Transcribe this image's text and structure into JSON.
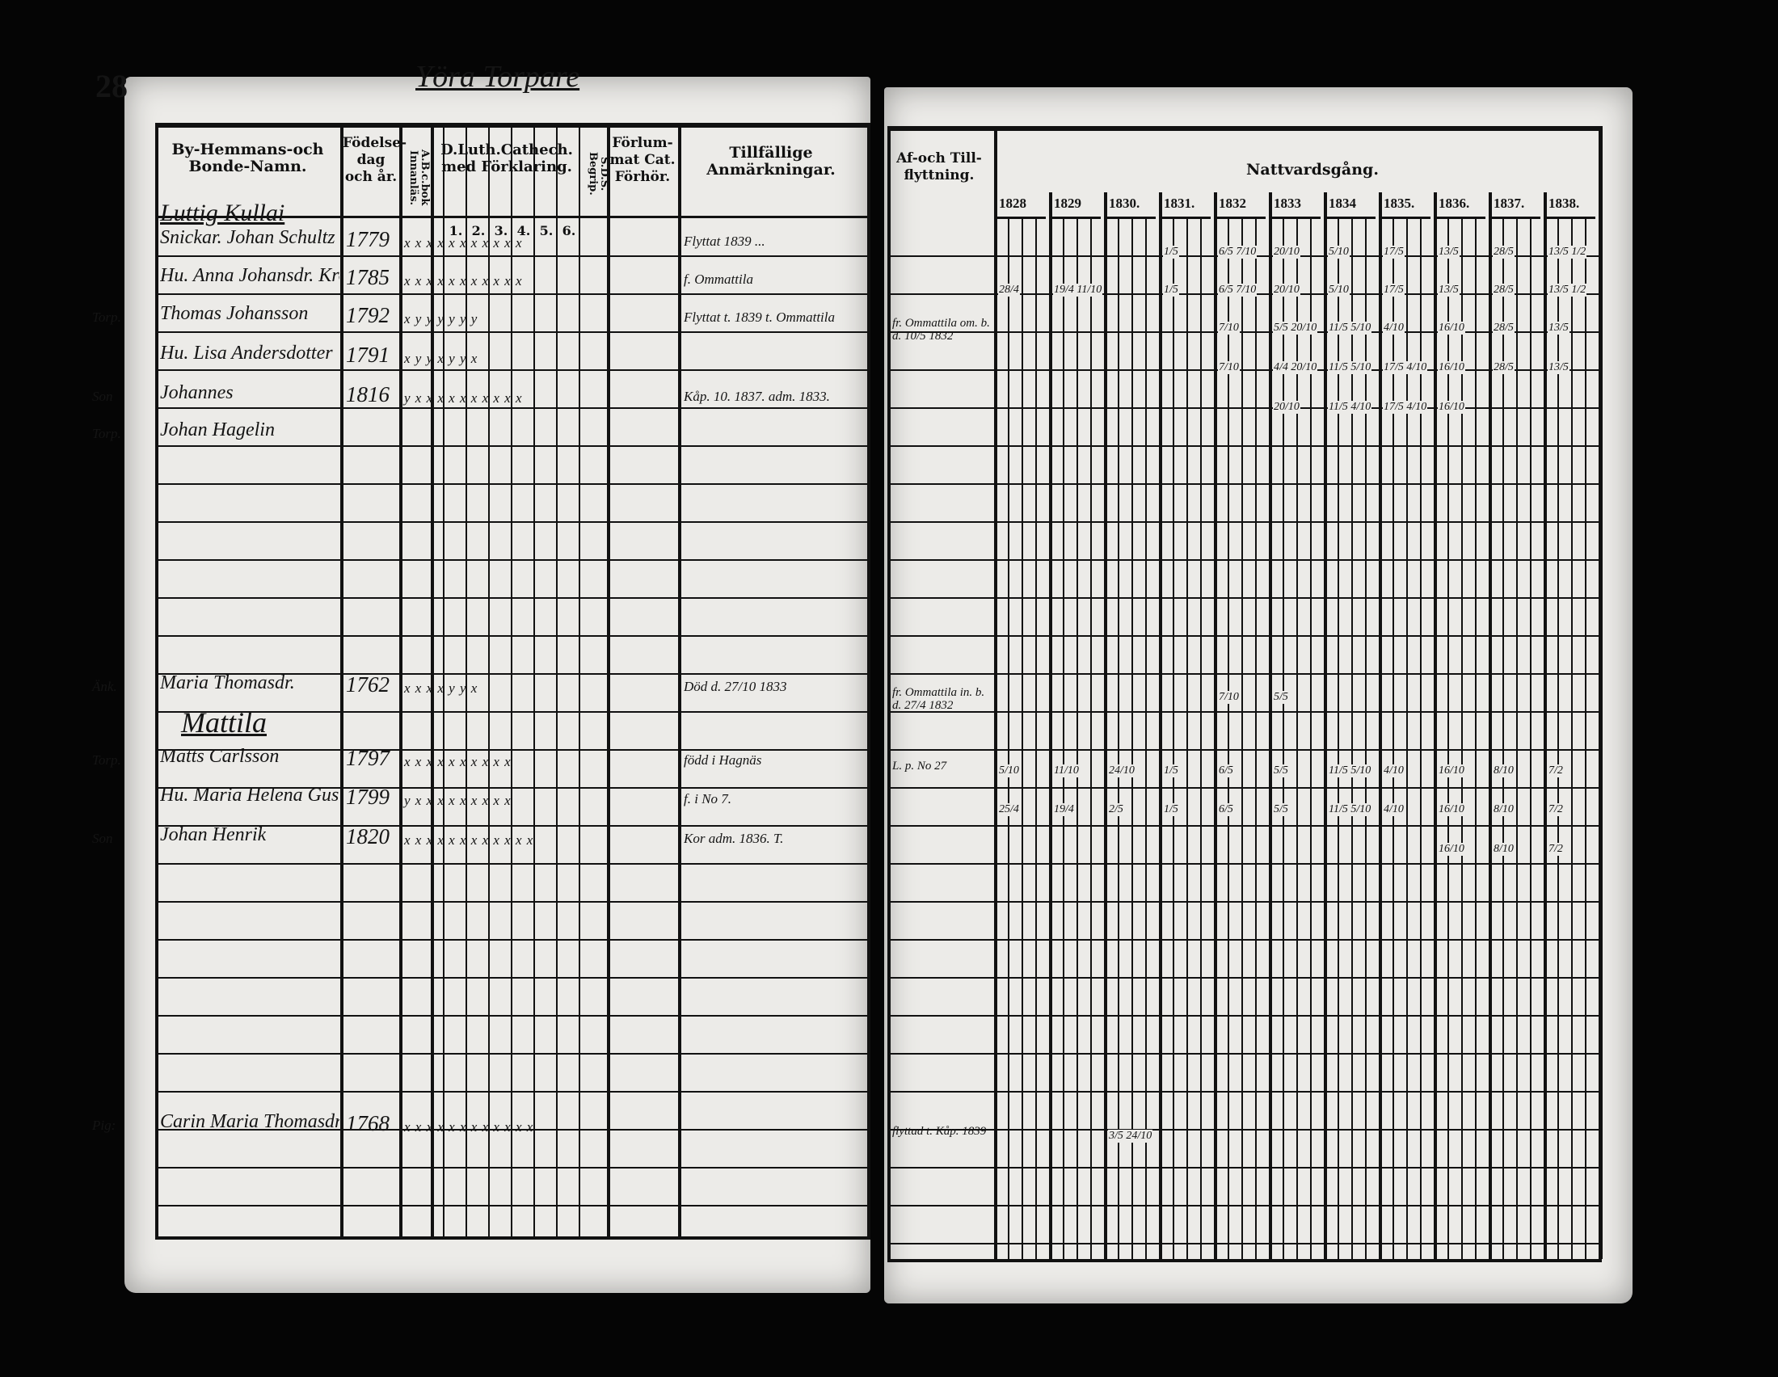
{
  "left_page": {
    "page_number": "28",
    "page_heading": "Yöra Torpare",
    "headers": {
      "names": "By-Hemmans-och Bonde-Namn.",
      "birth": "Födelse-dag och år.",
      "abc": "A.B.c.bok Innanläs.",
      "catechism": "D.Luth.Cathech. med Förklaring.",
      "catechism_cols": [
        "1.",
        "2.",
        "3.",
        "4.",
        "5.",
        "6."
      ],
      "sds": "S.D.S. Begrip.",
      "forlummat": "Förlum-mat Cat. Förhör.",
      "remarks": "Tillfällige Anmärkningar."
    },
    "groups": [
      {
        "title": "Luttig Kullai"
      },
      {
        "title": "Mattila"
      }
    ],
    "entries": [
      {
        "role": "",
        "name": "Snickar. Johan Schultz",
        "birth": "1779",
        "marks": "x x x x x x x x x x x",
        "remarks": "Flyttat 1839 ..."
      },
      {
        "role": "",
        "name": "Hu. Anna Johansdr. Kront",
        "birth": "1785",
        "marks": "x x x x x x x x x x x",
        "remarks": "f. Ommattila"
      },
      {
        "role": "Torp.",
        "name": "Thomas Johansson",
        "birth": "1792",
        "marks": "x  y  y  y  y  y  y",
        "remarks": "Flyttat t. 1839 t. Ommattila"
      },
      {
        "role": "",
        "name": "Hu. Lisa Andersdotter",
        "birth": "1791",
        "marks": "x  y  y  x  y  y  x",
        "remarks": ""
      },
      {
        "role": "Son",
        "name": "Johannes",
        "birth": "1816",
        "marks": "y x x x x x x x x x x",
        "remarks": "Kåp. 10. 1837.  adm. 1833."
      },
      {
        "role": "Torp.",
        "name": "Johan Hagelin",
        "birth": "",
        "marks": "",
        "remarks": ""
      },
      {
        "role": "Änk.",
        "name": "Maria Thomasdr.",
        "birth": "1762",
        "marks": "x  x  x  x  y  y  x",
        "remarks": "Död d. 27/10 1833"
      },
      {
        "role": "Torp.",
        "name": "Matts Carlsson",
        "birth": "1797",
        "marks": "x x x x x x x x x x",
        "remarks": "född i Hagnäs"
      },
      {
        "role": "",
        "name": "Hu. Maria Helena Gustafsdr.",
        "birth": "1799",
        "marks": "y x x x x x x x x x",
        "remarks": "f. i No 7."
      },
      {
        "role": "Son",
        "name": "Johan Henrik",
        "birth": "1820",
        "marks": "x x x x x x x x x x x x",
        "remarks": "Kor adm. 1836. T."
      },
      {
        "role": "Pig:",
        "name": "Carin Maria Thomasdr.",
        "birth": "1768",
        "marks": "x x x x x x x x x x x x",
        "remarks": ""
      }
    ]
  },
  "right_page": {
    "headers": {
      "moving": "Af-och Till-flyttning.",
      "communion": "Nattvardsgång.",
      "years": [
        "1828",
        "1829",
        "1830.",
        "1831.",
        "1832",
        "1833",
        "1834",
        "1835.",
        "1836.",
        "1837.",
        "1838."
      ]
    },
    "moving_notes": [
      "",
      "",
      "fr. Ommattila om. b. d. 10/5 1832",
      "",
      "",
      "",
      "fr. Ommattila in. b. d. 27/4 1832",
      "L. p. No 27",
      "",
      "",
      "flyttad t. Kåp. 1839"
    ],
    "communion": [
      {
        "1831": "1/5",
        "1832": "6/5 7/10",
        "1833": "20/10",
        "1834": "5/10",
        "1835": "17/5",
        "1836": "13/5",
        "1837": "28/5",
        "1838.": "13/5 1/2"
      },
      {
        "1828": "28/4",
        "1829": "19/4 11/10",
        "1831": "1/5",
        "1832": "6/5 7/10",
        "1833": "20/10",
        "1834": "5/10",
        "1835": "17/5",
        "1836": "13/5",
        "1837": "28/5",
        "1838.": "13/5 1/2"
      },
      {
        "1832": "7/10",
        "1833": "5/5 20/10",
        "1834": "11/5 5/10",
        "1835": "4/10",
        "1836": "16/10",
        "1837": "28/5",
        "1838.": "13/5"
      },
      {
        "1832": "7/10",
        "1833": "4/4 20/10",
        "1834": "11/5 5/10",
        "1835": "17/5 4/10",
        "1836": "16/10",
        "1837": "28/5",
        "1838.": "13/5"
      },
      {
        "1833": "20/10",
        "1834": "11/5 4/10",
        "1835": "17/5 4/10",
        "1836": "16/10"
      },
      {},
      {
        "1832": "7/10",
        "1833": "5/5"
      },
      {
        "1828": "5/10",
        "1829": "11/10",
        "1830": "24/10",
        "1831": "1/5",
        "1832": "6/5",
        "1833": "5/5",
        "1834": "11/5 5/10",
        "1835": "4/10",
        "1836": "16/10",
        "1837": "8/10",
        "1838.": "7/2"
      },
      {
        "1828": "25/4",
        "1829": "19/4",
        "1830": "2/5",
        "1831": "1/5",
        "1832": "6/5",
        "1833": "5/5",
        "1834": "11/5 5/10",
        "1835": "4/10",
        "1836": "16/10",
        "1837": "8/10",
        "1838.": "7/2"
      },
      {
        "1836": "16/10",
        "1837": "8/10",
        "1838.": "7/2"
      },
      {
        "1830": "3/5 24/10"
      }
    ]
  }
}
